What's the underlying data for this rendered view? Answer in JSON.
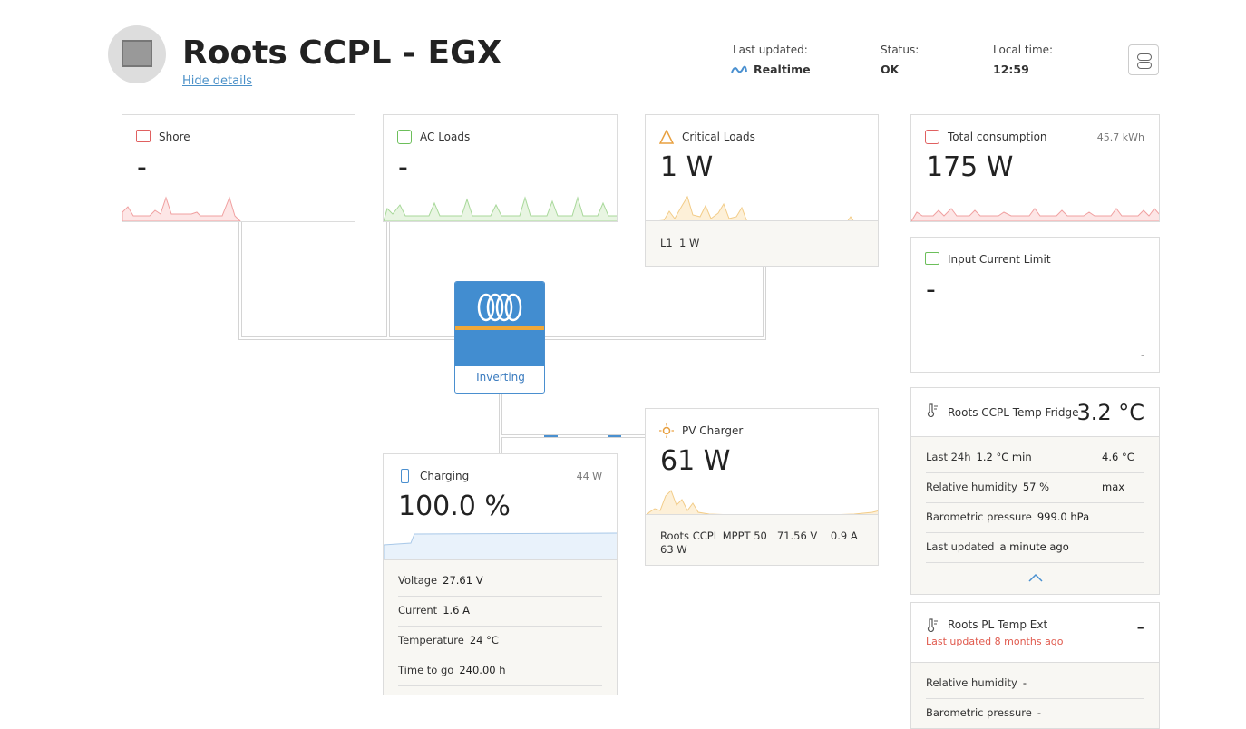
{
  "header": {
    "title": "Roots CCPL - EGX",
    "hide_details": "Hide details",
    "last_updated": {
      "label": "Last updated:",
      "value": "Realtime"
    },
    "status": {
      "label": "Status:",
      "value": "OK"
    },
    "local_time": {
      "label": "Local time:",
      "value": "12:59"
    }
  },
  "shore": {
    "title": "Shore",
    "value": "-"
  },
  "ac_loads": {
    "title": "AC Loads",
    "value": "-"
  },
  "critical_loads": {
    "title": "Critical Loads",
    "value": "1 W",
    "phase": "L1",
    "phase_value": "1 W"
  },
  "total_consumption": {
    "title": "Total consumption",
    "energy": "45.7 kWh",
    "value": "175 W"
  },
  "input_current_limit": {
    "title": "Input Current Limit",
    "value": "-",
    "small": "-"
  },
  "inverter": {
    "state": "Inverting"
  },
  "pv_charger": {
    "title": "PV Charger",
    "value": "61 W",
    "device": "Roots CCPL MPPT 50",
    "voltage": "71.56 V",
    "current": "0.9 A",
    "power": "63 W"
  },
  "battery": {
    "title": "Charging",
    "power": "44 W",
    "value": "100.0 %",
    "rows": [
      [
        "Voltage",
        "27.61 V"
      ],
      [
        "Current",
        "1.6 A"
      ],
      [
        "Temperature",
        "24 °C"
      ],
      [
        "Time to go",
        "240.00 h"
      ]
    ]
  },
  "temp_fridge": {
    "title": "Roots CCPL Temp Fridge",
    "value": "3.2 °C",
    "last24": {
      "label": "Last 24h",
      "min": "1.2 °C min",
      "max": "4.6 °C max"
    },
    "rows": [
      [
        "Relative humidity",
        "57 %"
      ],
      [
        "Barometric pressure",
        "999.0 hPa"
      ],
      [
        "Last updated",
        "a minute ago"
      ]
    ]
  },
  "temp_ext": {
    "title": "Roots PL Temp Ext",
    "value": "-",
    "note": "Last updated 8 months ago",
    "rows": [
      [
        "Relative humidity",
        "-"
      ],
      [
        "Barometric pressure",
        "-"
      ]
    ]
  }
}
